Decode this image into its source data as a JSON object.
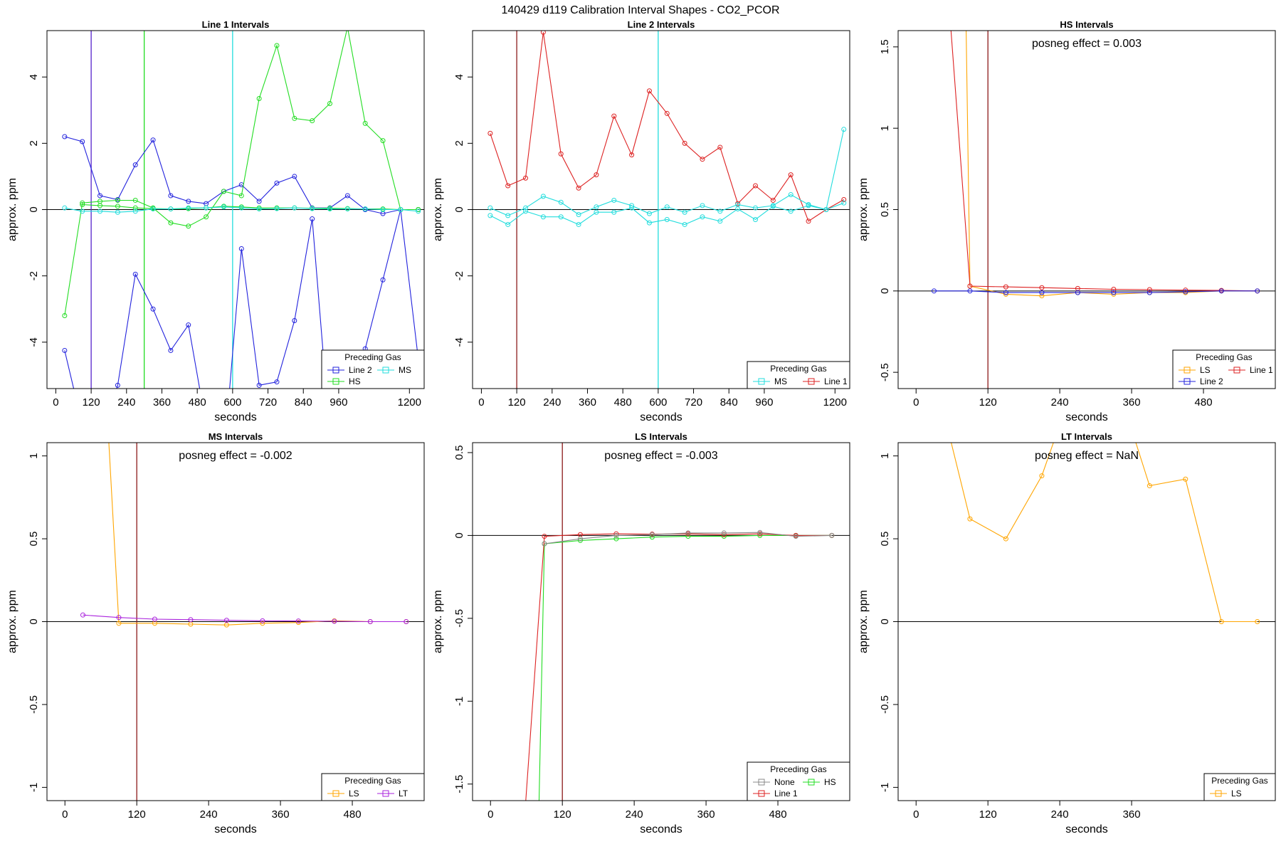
{
  "figure_title": "140429  d119   Calibration Interval Shapes - CO2_PCOR",
  "colors": {
    "Line 2": "#2222dd",
    "HS": "#22dd22",
    "MS": "#22dddd",
    "Line 1": "#dd2222",
    "LS": "#ffa500",
    "LT": "#aa22dd",
    "None": "#888888",
    "vline_red": "#8b1a1a",
    "zero_line": "#000000"
  },
  "chart_data": [
    {
      "type": "line",
      "title": "Line 1 Intervals",
      "xlabel": "seconds",
      "ylabel": "approx. ppm",
      "xlim": [
        -30,
        1250
      ],
      "ylim": [
        -5.4,
        5.4
      ],
      "xticks": [
        0,
        120,
        240,
        360,
        480,
        600,
        720,
        840,
        960,
        1200
      ],
      "yticks": [
        -4,
        -2,
        0,
        2,
        4
      ],
      "zero_line": true,
      "vlines": [
        {
          "x": 120,
          "color": "#5522cc"
        },
        {
          "x": 300,
          "color": "#22dd22"
        },
        {
          "x": 600,
          "color": "#22dddd"
        }
      ],
      "annotation": "",
      "legend": {
        "title": "Preceding Gas",
        "entries": [
          "Line 2",
          "MS",
          "HS"
        ],
        "columns": 2
      },
      "series": [
        {
          "name": "Line 2",
          "x": [
            30,
            90,
            150,
            210,
            270,
            330,
            390,
            450,
            510,
            570,
            630,
            690,
            750,
            810,
            870,
            930,
            990,
            1050,
            1110,
            1170,
            1230
          ],
          "y": [
            2.2,
            2.05,
            0.42,
            0.3,
            1.35,
            2.1,
            0.42,
            0.25,
            0.18,
            0.55,
            0.75,
            0.25,
            0.8,
            1.0,
            0.05,
            0.05,
            0.42,
            0.0,
            -0.12,
            0.0,
            0.0
          ]
        },
        {
          "name": "Line 2",
          "x": [
            30,
            90,
            150,
            210,
            270,
            330,
            390,
            450,
            510,
            570,
            630,
            690,
            750,
            810,
            870,
            930,
            990,
            1050,
            1110,
            1170,
            1230
          ],
          "y": [
            -4.25,
            -6.5,
            -7.0,
            -5.3,
            -1.95,
            -3.0,
            -4.25,
            -3.48,
            -6.5,
            -7.5,
            -1.18,
            -5.3,
            -5.2,
            -3.35,
            -0.28,
            -6.8,
            -7.0,
            -4.2,
            -2.12,
            0.0,
            -4.5
          ]
        },
        {
          "name": "HS",
          "x": [
            30,
            90,
            150,
            210,
            270,
            330,
            390,
            450,
            510,
            570,
            630,
            690,
            750,
            810,
            870,
            930,
            990,
            1050,
            1110,
            1170,
            1230
          ],
          "y": [
            -3.2,
            0.2,
            0.25,
            0.28,
            0.28,
            0.05,
            -0.4,
            -0.5,
            -0.22,
            0.55,
            0.42,
            3.35,
            4.95,
            2.75,
            2.68,
            3.2,
            5.5,
            2.6,
            2.08,
            0.0,
            0.0
          ]
        },
        {
          "name": "HS",
          "x": [
            90,
            150,
            210,
            270,
            330,
            390,
            450,
            510,
            570,
            630,
            690,
            750,
            810,
            870,
            930,
            990,
            1050,
            1110,
            1170,
            1230
          ],
          "y": [
            0.15,
            0.12,
            0.1,
            0.05,
            0.03,
            0.02,
            0.03,
            0.05,
            0.1,
            0.08,
            0.05,
            0.05,
            0.05,
            0.04,
            0.04,
            0.03,
            0.02,
            0.02,
            0.0,
            0.0
          ]
        },
        {
          "name": "MS",
          "x": [
            30,
            90,
            150,
            210,
            270,
            330,
            390,
            450,
            510,
            570,
            630,
            690,
            750,
            810,
            870,
            930,
            990,
            1050,
            1110,
            1170,
            1230
          ],
          "y": [
            0.05,
            -0.05,
            -0.05,
            -0.08,
            -0.05,
            0.02,
            0.02,
            0.05,
            0.05,
            0.08,
            0.05,
            0.02,
            0.03,
            0.05,
            0.03,
            0.02,
            0.02,
            0.02,
            0.0,
            0.0,
            -0.05
          ]
        }
      ]
    },
    {
      "type": "line",
      "title": "Line 2 Intervals",
      "xlabel": "seconds",
      "ylabel": "approx. ppm",
      "xlim": [
        -30,
        1250
      ],
      "ylim": [
        -5.4,
        5.4
      ],
      "xticks": [
        0,
        120,
        240,
        360,
        480,
        600,
        720,
        840,
        960,
        1200
      ],
      "yticks": [
        -4,
        -2,
        0,
        2,
        4
      ],
      "zero_line": true,
      "vlines": [
        {
          "x": 120,
          "color": "#8b1a1a"
        },
        {
          "x": 600,
          "color": "#22dddd"
        }
      ],
      "annotation": "",
      "legend": {
        "title": "Preceding Gas",
        "entries": [
          "MS",
          "Line 1"
        ],
        "columns": 2
      },
      "series": [
        {
          "name": "Line 1",
          "x": [
            30,
            90,
            150,
            210,
            270,
            330,
            390,
            450,
            510,
            570,
            630,
            690,
            750,
            810,
            870,
            930,
            990,
            1050,
            1110,
            1170,
            1230
          ],
          "y": [
            2.3,
            0.72,
            0.95,
            5.35,
            1.68,
            0.65,
            1.05,
            2.82,
            1.65,
            3.58,
            2.9,
            2.0,
            1.52,
            1.88,
            0.18,
            0.72,
            0.28,
            1.05,
            -0.35,
            0.0,
            0.3
          ]
        },
        {
          "name": "MS",
          "x": [
            30,
            90,
            150,
            210,
            270,
            330,
            390,
            450,
            510,
            570,
            630,
            690,
            750,
            810,
            870,
            930,
            990,
            1050,
            1110,
            1170,
            1230
          ],
          "y": [
            0.05,
            -0.18,
            0.05,
            0.4,
            0.22,
            -0.15,
            0.08,
            0.28,
            0.12,
            -0.12,
            0.08,
            -0.08,
            0.12,
            -0.05,
            0.15,
            0.05,
            0.12,
            0.45,
            0.15,
            0.0,
            2.42
          ]
        },
        {
          "name": "MS",
          "x": [
            30,
            90,
            150,
            210,
            270,
            330,
            390,
            450,
            510,
            570,
            630,
            690,
            750,
            810,
            870,
            930,
            990,
            1050,
            1110,
            1170,
            1230
          ],
          "y": [
            -0.18,
            -0.45,
            -0.05,
            -0.22,
            -0.22,
            -0.45,
            -0.08,
            -0.08,
            0.05,
            -0.4,
            -0.3,
            -0.45,
            -0.22,
            -0.35,
            0.02,
            -0.3,
            0.1,
            -0.05,
            0.12,
            0.0,
            0.2
          ]
        }
      ]
    },
    {
      "type": "line",
      "title": "HS Intervals",
      "xlabel": "seconds",
      "ylabel": "approx. ppm",
      "xlim": [
        -30,
        600
      ],
      "ylim": [
        -0.6,
        1.6
      ],
      "xticks": [
        0,
        120,
        240,
        360,
        480
      ],
      "yticks": [
        -0.5,
        0.0,
        0.5,
        1.0,
        1.5
      ],
      "zero_line": true,
      "vlines": [
        {
          "x": 120,
          "color": "#8b1a1a"
        }
      ],
      "annotation": "posneg effect = 0.003",
      "legend": {
        "title": "Preceding Gas",
        "entries": [
          "LS",
          "Line 1",
          "Line 2"
        ],
        "columns": 2
      },
      "series": [
        {
          "name": "LS",
          "x": [
            80,
            90,
            150,
            210,
            270,
            330,
            390,
            450,
            510,
            570
          ],
          "y": [
            2.5,
            0.03,
            -0.02,
            -0.03,
            -0.01,
            -0.02,
            -0.01,
            -0.01,
            0.0,
            0.0
          ]
        },
        {
          "name": "Line 1",
          "x": [
            30,
            90,
            150,
            210,
            270,
            330,
            390,
            450,
            510,
            570
          ],
          "y": [
            3.0,
            0.03,
            0.025,
            0.02,
            0.015,
            0.01,
            0.008,
            0.005,
            0.003,
            0.0
          ]
        },
        {
          "name": "Line 2",
          "x": [
            30,
            90,
            150,
            210,
            270,
            330,
            390,
            450,
            510,
            570
          ],
          "y": [
            0.0,
            0.0,
            -0.01,
            -0.01,
            -0.01,
            -0.01,
            -0.01,
            -0.005,
            0.0,
            0.0
          ]
        }
      ]
    },
    {
      "type": "line",
      "title": "MS Intervals",
      "xlabel": "seconds",
      "ylabel": "approx. ppm",
      "xlim": [
        -30,
        600
      ],
      "ylim": [
        -1.08,
        1.08
      ],
      "xticks": [
        0,
        120,
        240,
        360,
        480
      ],
      "yticks": [
        -1.0,
        -0.5,
        0.0,
        0.5,
        1.0
      ],
      "zero_line": true,
      "vlines": [
        {
          "x": 120,
          "color": "#8b1a1a"
        }
      ],
      "annotation": "posneg effect = -0.002",
      "legend": {
        "title": "Preceding Gas",
        "entries": [
          "LS",
          "LT"
        ],
        "columns": 2
      },
      "series": [
        {
          "name": "LS",
          "x": [
            70,
            90,
            150,
            210,
            270,
            330,
            390,
            450,
            510,
            570
          ],
          "y": [
            1.3,
            -0.01,
            -0.01,
            -0.015,
            -0.02,
            -0.01,
            -0.005,
            0.005,
            0.0,
            0.0
          ]
        },
        {
          "name": "LT",
          "x": [
            30,
            90,
            150,
            210,
            270,
            330,
            390,
            450,
            510,
            570
          ],
          "y": [
            0.04,
            0.025,
            0.015,
            0.012,
            0.008,
            0.005,
            0.004,
            0.002,
            0.0,
            0.0
          ]
        }
      ]
    },
    {
      "type": "line",
      "title": "LS Intervals",
      "xlabel": "seconds",
      "ylabel": "approx. ppm",
      "xlim": [
        -30,
        600
      ],
      "ylim": [
        -1.6,
        0.56
      ],
      "xticks": [
        0,
        120,
        240,
        360,
        480
      ],
      "yticks": [
        -1.5,
        -1.0,
        -0.5,
        0.0,
        0.5
      ],
      "zero_line": true,
      "vlines": [
        {
          "x": 120,
          "color": "#8b1a1a"
        }
      ],
      "annotation": "posneg effect = -0.003",
      "legend": {
        "title": "Preceding Gas",
        "entries": [
          "None",
          "HS",
          "Line 1"
        ],
        "columns": 2
      },
      "series": [
        {
          "name": "HS",
          "x": [
            80,
            90,
            150,
            210,
            270,
            330,
            390,
            450,
            510,
            570
          ],
          "y": [
            -1.8,
            -0.05,
            -0.03,
            -0.02,
            -0.01,
            -0.005,
            -0.005,
            0.0,
            0.0,
            0.0
          ]
        },
        {
          "name": "Line 1",
          "x": [
            55,
            90,
            150,
            210,
            270,
            330,
            390,
            450,
            510,
            570
          ],
          "y": [
            -1.8,
            -0.005,
            0.005,
            0.01,
            0.008,
            0.01,
            0.005,
            0.01,
            0.0,
            0.0
          ]
        },
        {
          "name": "None",
          "x": [
            90,
            150,
            210,
            270,
            330,
            390,
            450,
            510,
            570
          ],
          "y": [
            -0.05,
            -0.02,
            0.0,
            0.005,
            0.015,
            0.015,
            0.018,
            -0.005,
            0.0
          ]
        }
      ]
    },
    {
      "type": "line",
      "title": "LT Intervals",
      "xlabel": "seconds",
      "ylabel": "approx. ppm",
      "xlim": [
        -30,
        600
      ],
      "ylim": [
        -1.08,
        1.08
      ],
      "xticks": [
        0,
        120,
        240,
        360
      ],
      "yticks": [
        -1.0,
        -0.5,
        0.0,
        0.5,
        1.0
      ],
      "zero_line": true,
      "vlines": [],
      "annotation": "posneg effect = NaN",
      "legend": {
        "title": "Preceding Gas",
        "entries": [
          "LS"
        ],
        "columns": 1
      },
      "series": [
        {
          "name": "LS",
          "x": [
            30,
            90,
            150,
            210,
            270,
            330,
            390,
            450,
            510,
            570
          ],
          "y": [
            1.5,
            0.62,
            0.5,
            0.88,
            1.5,
            1.5,
            0.82,
            0.86,
            0.0,
            0.0
          ]
        }
      ]
    }
  ]
}
